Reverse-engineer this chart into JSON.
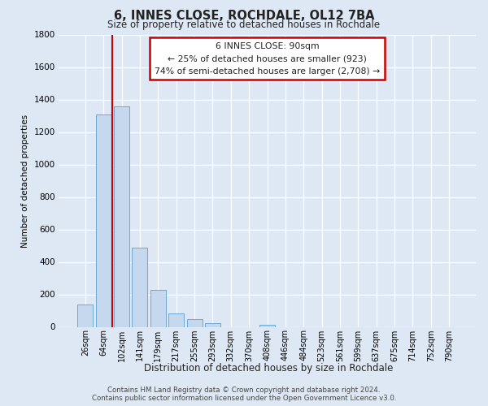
{
  "title": "6, INNES CLOSE, ROCHDALE, OL12 7BA",
  "subtitle": "Size of property relative to detached houses in Rochdale",
  "xlabel": "Distribution of detached houses by size in Rochdale",
  "ylabel": "Number of detached properties",
  "bar_labels": [
    "26sqm",
    "64sqm",
    "102sqm",
    "141sqm",
    "179sqm",
    "217sqm",
    "255sqm",
    "293sqm",
    "332sqm",
    "370sqm",
    "408sqm",
    "446sqm",
    "484sqm",
    "523sqm",
    "561sqm",
    "599sqm",
    "637sqm",
    "675sqm",
    "714sqm",
    "752sqm",
    "790sqm"
  ],
  "bar_heights": [
    140,
    1310,
    1360,
    490,
    230,
    85,
    50,
    25,
    0,
    0,
    15,
    0,
    0,
    0,
    0,
    0,
    0,
    0,
    0,
    0,
    0
  ],
  "bar_color": "#c5d8ee",
  "bar_edge_color": "#6aaad4",
  "red_line_index": 1.5,
  "annotation_line1": "6 INNES CLOSE: 90sqm",
  "annotation_line2": "← 25% of detached houses are smaller (923)",
  "annotation_line3": "74% of semi-detached houses are larger (2,708) →",
  "ylim": [
    0,
    1800
  ],
  "yticks": [
    0,
    200,
    400,
    600,
    800,
    1000,
    1200,
    1400,
    1600,
    1800
  ],
  "background_color": "#dde8f4",
  "plot_background": "#dde8f4",
  "grid_color": "#ffffff",
  "footer_line1": "Contains HM Land Registry data © Crown copyright and database right 2024.",
  "footer_line2": "Contains public sector information licensed under the Open Government Licence v3.0.",
  "annotation_box_edge": "#cc0000",
  "red_line_color": "#cc0000"
}
